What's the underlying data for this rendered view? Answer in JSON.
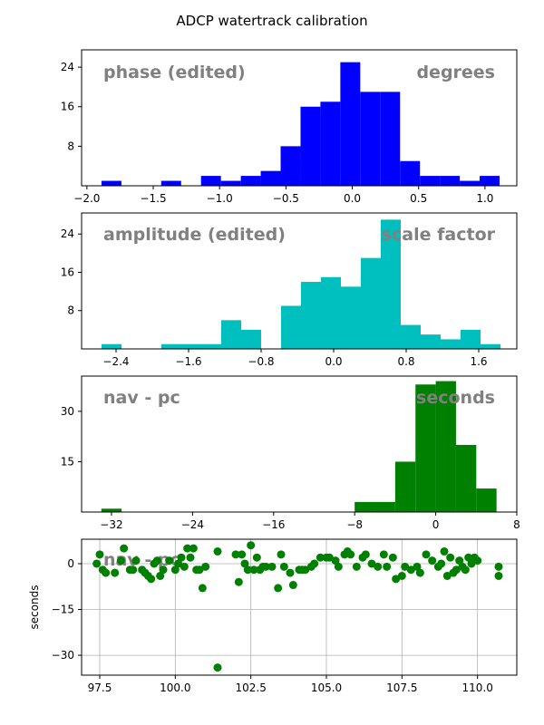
{
  "figure_title": "ADCP watertrack calibration",
  "colors": {
    "phase": "#0000ff",
    "amplitude": "#00bfbf",
    "nav": "#008000",
    "scatter": "#008000",
    "panel_text": "#808080",
    "grid": "#b0b0b0"
  },
  "chart_data": [
    {
      "id": "phase",
      "type": "bar",
      "left_label": "phase (edited)",
      "right_label": "degrees",
      "xlim": [
        -2.04,
        1.24
      ],
      "ylim": [
        0,
        27.5
      ],
      "xticks": [
        -2.0,
        -1.5,
        -1.0,
        -0.5,
        0.0,
        0.5,
        1.0
      ],
      "xtick_labels": [
        "−2.0",
        "−1.5",
        "−1.0",
        "−0.5",
        "0.0",
        "0.5",
        "1.0"
      ],
      "yticks": [
        8,
        16,
        24
      ],
      "ytick_labels": [
        "8",
        "16",
        "24"
      ],
      "bin_edges": [
        -1.89,
        -1.74,
        -1.59,
        -1.44,
        -1.29,
        -1.14,
        -0.99,
        -0.84,
        -0.69,
        -0.54,
        -0.39,
        -0.24,
        -0.09,
        0.06,
        0.21,
        0.36,
        0.51,
        0.66,
        0.81,
        0.96,
        1.11
      ],
      "values": [
        1,
        0,
        0,
        1,
        0,
        2,
        1,
        2,
        3,
        8,
        16,
        17,
        25,
        19,
        19,
        5,
        2,
        2,
        1,
        2
      ]
    },
    {
      "id": "amplitude",
      "type": "bar",
      "left_label": "amplitude (edited)",
      "right_label": "scale factor",
      "xlim": [
        -2.78,
        2.02
      ],
      "ylim": [
        0,
        28.4
      ],
      "xticks": [
        -2.4,
        -1.6,
        -0.8,
        0.0,
        0.8,
        1.6
      ],
      "xtick_labels": [
        "−2.4",
        "−1.6",
        "−0.8",
        "0.0",
        "0.8",
        "1.6"
      ],
      "yticks": [
        8,
        16,
        24
      ],
      "ytick_labels": [
        "8",
        "16",
        "24"
      ],
      "bin_edges": [
        -2.56,
        -2.34,
        -2.12,
        -1.9,
        -1.68,
        -1.46,
        -1.24,
        -1.02,
        -0.8,
        -0.58,
        -0.36,
        -0.14,
        0.08,
        0.3,
        0.52,
        0.74,
        0.96,
        1.18,
        1.4,
        1.62,
        1.84
      ],
      "values": [
        1,
        0,
        0,
        1,
        1,
        1,
        6,
        4,
        0,
        9,
        14,
        15,
        13,
        19,
        27,
        5,
        3,
        2,
        4,
        1
      ]
    },
    {
      "id": "nav",
      "type": "bar",
      "left_label": "nav - pc",
      "right_label": "seconds",
      "xlim": [
        -34.95,
        8.0
      ],
      "ylim": [
        0,
        40.5
      ],
      "xticks": [
        -32,
        -24,
        -16,
        -8,
        0,
        8
      ],
      "xtick_labels": [
        "−32",
        "−24",
        "−16",
        "−8",
        "0",
        "8"
      ],
      "yticks": [
        15,
        30
      ],
      "ytick_labels": [
        "15",
        "30"
      ],
      "bin_edges": [
        -33.0,
        -31.0,
        -29.0,
        -27.0,
        -25.0,
        -23.0,
        -21.0,
        -19.0,
        -17.0,
        -15.0,
        -13.0,
        -11.0,
        -9.0,
        -8.0,
        -6.0,
        -4.0,
        -2.0,
        0.0,
        2.0,
        4.0,
        6.0
      ],
      "values": [
        1,
        0,
        0,
        0,
        0,
        0,
        0,
        0,
        0,
        0,
        0,
        0,
        0,
        3,
        3,
        15,
        38,
        39,
        20,
        7
      ]
    },
    {
      "id": "timeseries",
      "type": "scatter",
      "ylabel": "seconds",
      "xlim": [
        96.9,
        111.3
      ],
      "ylim": [
        -36.5,
        8.0
      ],
      "grid": true,
      "xticks": [
        97.5,
        100.0,
        102.5,
        105.0,
        107.5,
        110.0
      ],
      "xtick_labels": [
        "97.5",
        "100.0",
        "102.5",
        "105.0",
        "107.5",
        "110.0"
      ],
      "yticks": [
        0,
        -15,
        -30
      ],
      "ytick_labels": [
        "0",
        "−15",
        "−30"
      ],
      "overlay_label": "nav - pc",
      "x": [
        97.4,
        97.5,
        97.6,
        97.7,
        98.0,
        98.2,
        98.3,
        98.5,
        98.6,
        98.7,
        98.9,
        99.0,
        99.1,
        99.2,
        99.3,
        99.4,
        99.5,
        99.6,
        99.8,
        100.0,
        100.1,
        100.2,
        100.3,
        100.4,
        100.5,
        100.6,
        100.7,
        100.8,
        100.9,
        101.0,
        101.4,
        101.4,
        102.0,
        102.1,
        102.2,
        102.3,
        102.4,
        102.5,
        102.6,
        102.7,
        102.8,
        102.9,
        103.0,
        103.2,
        103.4,
        103.5,
        103.6,
        103.8,
        103.9,
        104.1,
        104.2,
        104.3,
        104.5,
        104.6,
        104.8,
        105.0,
        105.1,
        105.3,
        105.4,
        105.6,
        105.7,
        105.8,
        106.0,
        106.2,
        106.3,
        106.5,
        106.7,
        106.9,
        107.0,
        107.2,
        107.3,
        107.5,
        107.6,
        107.8,
        108.0,
        108.1,
        108.3,
        108.5,
        108.7,
        108.8,
        108.9,
        109.0,
        109.1,
        109.2,
        109.3,
        109.4,
        109.5,
        109.6,
        109.7,
        109.8,
        109.9,
        110.0,
        110.7,
        110.7
      ],
      "y": [
        0,
        3,
        -2,
        -3,
        -3,
        1,
        5,
        -2,
        -2,
        1,
        -2,
        -3,
        -4,
        -5,
        0,
        1,
        -4,
        -2,
        1,
        -2,
        0,
        2,
        -1,
        5,
        2,
        5,
        -2,
        -2,
        -8,
        -1,
        -34,
        4,
        3,
        -6,
        3,
        0,
        -2,
        6,
        -2,
        2,
        -2,
        -1,
        -1,
        -1,
        -8,
        3,
        -1,
        -3,
        -7,
        -2,
        -2,
        -2,
        -1,
        0,
        2,
        2,
        2,
        1,
        -1,
        3,
        4,
        3,
        -1,
        2,
        3,
        0,
        -1,
        3,
        -1,
        2,
        -5,
        -4,
        -1,
        -2,
        -1,
        -3,
        3,
        1,
        -1,
        0,
        4,
        -4,
        2,
        -3,
        -2,
        1,
        -1,
        -2,
        2,
        0,
        2,
        1,
        -4,
        -1
      ]
    }
  ]
}
